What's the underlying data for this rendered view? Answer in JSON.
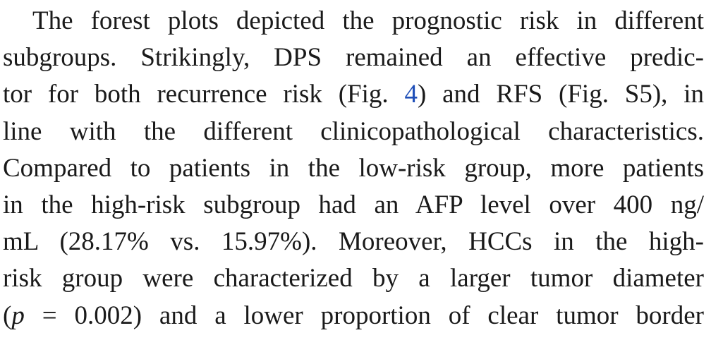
{
  "paragraph": {
    "lines": [
      {
        "text": "The forest plots depicted the prognostic risk in different"
      },
      {
        "text": "subgroups. Strikingly, DPS remained an effective predic-"
      },
      {
        "before": "tor for both recurrence risk (Fig. ",
        "fig_ref": "4",
        "after": ") and RFS (Fig. S5), in"
      },
      {
        "text": "line with the different clinicopathological characteristics."
      },
      {
        "text": "Compared to patients in the low-risk group, more patients"
      },
      {
        "text": "in the high-risk subgroup had an AFP level over 400 ng/"
      },
      {
        "text": "mL (28.17% vs. 15.97%). Moreover, HCCs in the high-"
      },
      {
        "text": "risk group were characterized by a larger tumor diameter"
      },
      {
        "open": "(",
        "p_symbol": "p",
        "rest": " = 0.002) and a lower proportion of clear tumor border"
      }
    ]
  },
  "colors": {
    "text": "#1a1a1a",
    "link": "#1f4fb8",
    "background": "#ffffff"
  }
}
